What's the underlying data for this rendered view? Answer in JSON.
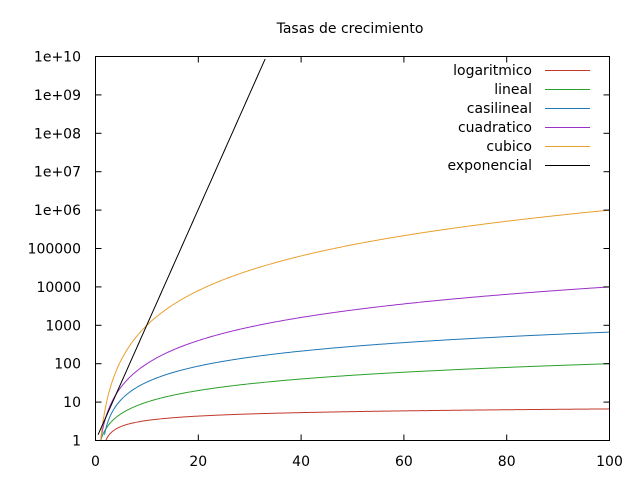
{
  "chart_data": {
    "type": "line",
    "title": "Tasas de crecimiento",
    "xlabel": "",
    "ylabel": "",
    "xlim": [
      0,
      100
    ],
    "ylim": [
      1,
      10000000000
    ],
    "yscale": "log",
    "grid": false,
    "legend_position": "top-right",
    "x_ticks": [
      "0",
      "20",
      "40",
      "60",
      "80",
      "100"
    ],
    "y_ticks": [
      "1",
      "10",
      "100",
      "1000",
      "10000",
      "100000",
      "1e+06",
      "1e+07",
      "1e+08",
      "1e+09",
      "1e+10"
    ],
    "series": [
      {
        "name": "logaritmico",
        "color": "#c0392b",
        "formula": "log2(x)",
        "x": [
          2,
          5,
          10,
          20,
          40,
          60,
          80,
          100
        ],
        "values": [
          1,
          2.32,
          3.32,
          4.32,
          5.32,
          5.91,
          6.32,
          6.64
        ]
      },
      {
        "name": "lineal",
        "color": "#2ca02c",
        "formula": "x",
        "x": [
          1,
          5,
          10,
          20,
          40,
          60,
          80,
          100
        ],
        "values": [
          1,
          5,
          10,
          20,
          40,
          60,
          80,
          100
        ]
      },
      {
        "name": "casilineal",
        "color": "#1f77b4",
        "formula": "x*log2(x)",
        "x": [
          2,
          5,
          10,
          20,
          40,
          60,
          80,
          100
        ],
        "values": [
          2,
          11.6,
          33.2,
          86.4,
          212.9,
          354.4,
          505.8,
          664.4
        ]
      },
      {
        "name": "cuadratico",
        "color": "#9b30c8",
        "formula": "x^2",
        "x": [
          1,
          5,
          10,
          20,
          40,
          60,
          80,
          100
        ],
        "values": [
          1,
          25,
          100,
          400,
          1600,
          3600,
          6400,
          10000
        ]
      },
      {
        "name": "cubico",
        "color": "#e8a030",
        "formula": "x^3",
        "x": [
          1,
          5,
          10,
          20,
          40,
          60,
          80,
          100
        ],
        "values": [
          1,
          125,
          1000,
          8000,
          64000,
          216000,
          512000,
          1000000
        ]
      },
      {
        "name": "exponencial",
        "color": "#000000",
        "formula": "2^x",
        "x": [
          0,
          5,
          10,
          20,
          30,
          33.2
        ],
        "values": [
          1,
          32,
          1024,
          1048576,
          1073741824,
          10000000000
        ]
      }
    ]
  }
}
